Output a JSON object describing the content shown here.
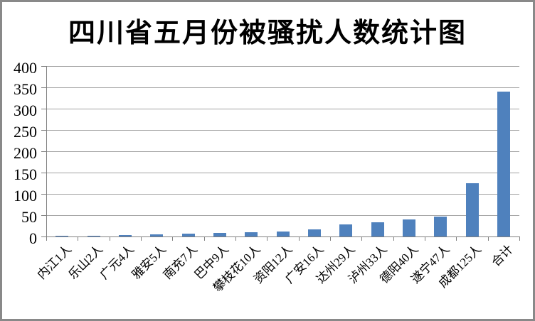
{
  "window": {
    "background_color": "#ffffff",
    "border_color": "#898989"
  },
  "chart_data": {
    "type": "bar",
    "title": "四川省五月份被骚扰人数统计图",
    "categories": [
      "内江1人",
      "乐山2人",
      "广元4人",
      "雅安5人",
      "南充7人",
      "巴中9人",
      "攀枝花10人",
      "资阳12人",
      "广安16人",
      "达州29人",
      "泸州33人",
      "德阳40人",
      "遂宁47人",
      "成都125人",
      "合计"
    ],
    "values": [
      1,
      2,
      4,
      5,
      7,
      9,
      10,
      12,
      16,
      29,
      33,
      40,
      47,
      125,
      340
    ],
    "xlabel": "",
    "ylabel": "",
    "ylim": [
      0,
      400
    ],
    "ytick_step": 50,
    "yticks": [
      0,
      50,
      100,
      150,
      200,
      250,
      300,
      350,
      400
    ],
    "grid": "horizontal-only",
    "legend": "none",
    "x_label_rotation_deg": 45,
    "bar_color": "#4f81bd",
    "gridline_color": "#a3a3a3",
    "axis_color": "#808080",
    "text_color": "#000000"
  }
}
